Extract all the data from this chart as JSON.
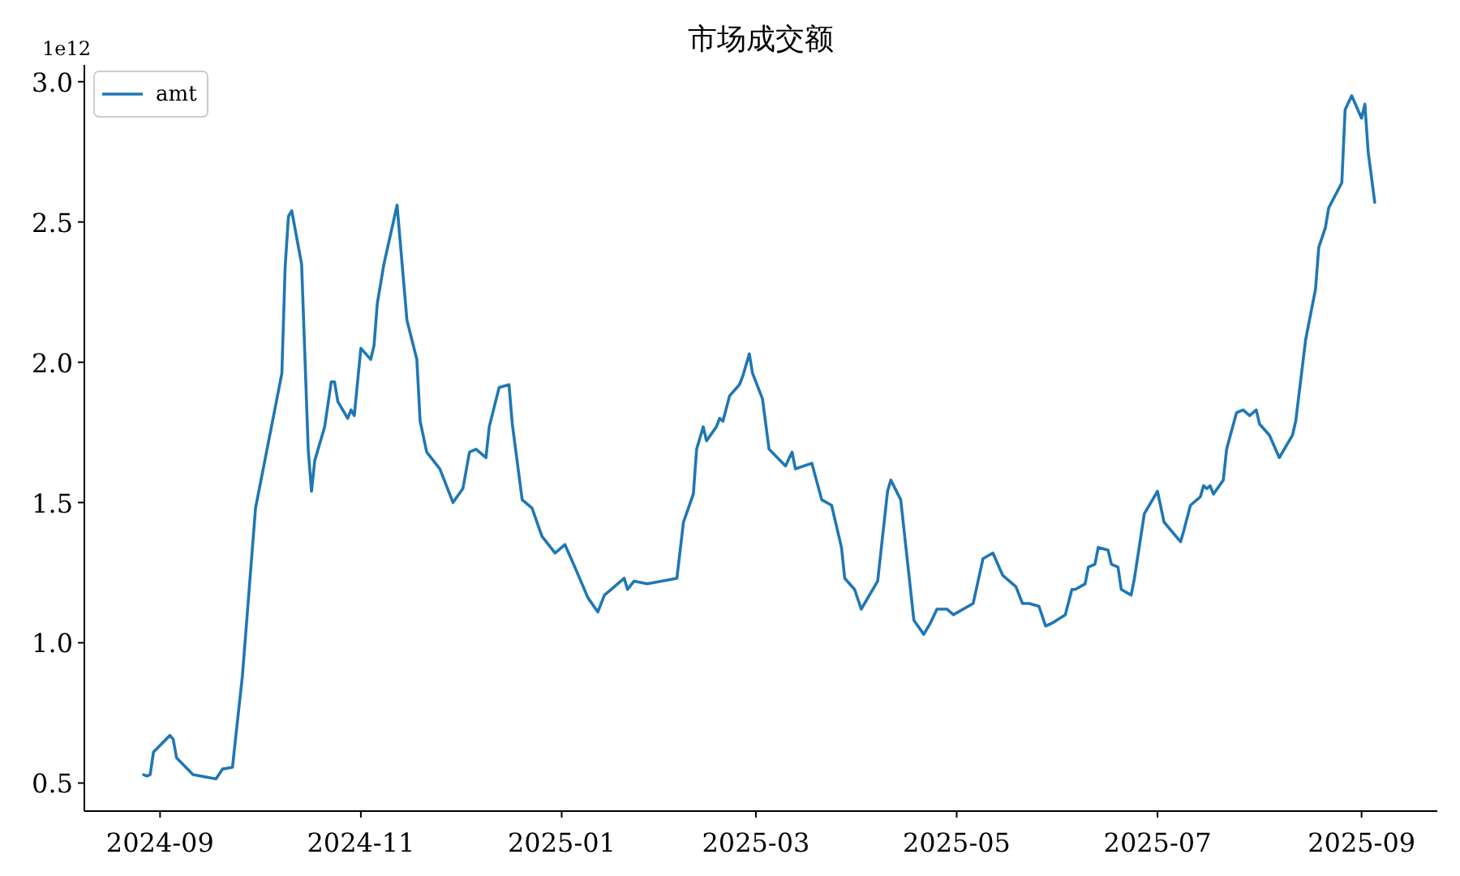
{
  "chart_data": {
    "type": "line",
    "title": "市场成交额",
    "annotations": [
      "1e12"
    ],
    "legend": "top left",
    "grid": false,
    "x": [
      "2024-08-27",
      "2024-08-28",
      "2024-08-29",
      "2024-08-30",
      "2024-09-04",
      "2024-09-05",
      "2024-09-06",
      "2024-09-11",
      "2024-09-18",
      "2024-09-20",
      "2024-09-23",
      "2024-09-24",
      "2024-09-26",
      "2024-09-30",
      "2024-10-08",
      "2024-10-09",
      "2024-10-10",
      "2024-10-11",
      "2024-10-14",
      "2024-10-16",
      "2024-10-17",
      "2024-10-18",
      "2024-10-21",
      "2024-10-23",
      "2024-10-24",
      "2024-10-25",
      "2024-10-28",
      "2024-10-29",
      "2024-10-30",
      "2024-11-01",
      "2024-11-04",
      "2024-11-05",
      "2024-11-06",
      "2024-11-08",
      "2024-11-12",
      "2024-11-15",
      "2024-11-18",
      "2024-11-19",
      "2024-11-21",
      "2024-11-25",
      "2024-11-29",
      "2024-12-02",
      "2024-12-04",
      "2024-12-06",
      "2024-12-09",
      "2024-12-10",
      "2024-12-13",
      "2024-12-16",
      "2024-12-17",
      "2024-12-20",
      "2024-12-23",
      "2024-12-26",
      "2024-12-30",
      "2025-01-02",
      "2025-01-05",
      "2025-01-09",
      "2025-01-12",
      "2025-01-14",
      "2025-01-16",
      "2025-01-20",
      "2025-01-21",
      "2025-01-23",
      "2025-01-27",
      "2025-02-05",
      "2025-02-07",
      "2025-02-10",
      "2025-02-11",
      "2025-02-13",
      "2025-02-14",
      "2025-02-17",
      "2025-02-18",
      "2025-02-19",
      "2025-02-21",
      "2025-02-24",
      "2025-02-25",
      "2025-02-27",
      "2025-02-28",
      "2025-03-03",
      "2025-03-05",
      "2025-03-10",
      "2025-03-12",
      "2025-03-13",
      "2025-03-18",
      "2025-03-21",
      "2025-03-24",
      "2025-03-27",
      "2025-03-28",
      "2025-03-31",
      "2025-04-02",
      "2025-04-07",
      "2025-04-10",
      "2025-04-11",
      "2025-04-14",
      "2025-04-18",
      "2025-04-21",
      "2025-04-23",
      "2025-04-25",
      "2025-04-28",
      "2025-04-30",
      "2025-05-06",
      "2025-05-09",
      "2025-05-12",
      "2025-05-15",
      "2025-05-19",
      "2025-05-21",
      "2025-05-23",
      "2025-05-26",
      "2025-05-28",
      "2025-05-30",
      "2025-06-03",
      "2025-06-05",
      "2025-06-06",
      "2025-06-09",
      "2025-06-10",
      "2025-06-12",
      "2025-06-13",
      "2025-06-16",
      "2025-06-17",
      "2025-06-19",
      "2025-06-20",
      "2025-06-23",
      "2025-06-24",
      "2025-06-27",
      "2025-07-01",
      "2025-07-03",
      "2025-07-08",
      "2025-07-09",
      "2025-07-11",
      "2025-07-14",
      "2025-07-15",
      "2025-07-16",
      "2025-07-17",
      "2025-07-18",
      "2025-07-21",
      "2025-07-22",
      "2025-07-25",
      "2025-07-27",
      "2025-07-29",
      "2025-07-31",
      "2025-08-01",
      "2025-08-04",
      "2025-08-07",
      "2025-08-11",
      "2025-08-12",
      "2025-08-15",
      "2025-08-18",
      "2025-08-19",
      "2025-08-21",
      "2025-08-22",
      "2025-08-26",
      "2025-08-27",
      "2025-08-29",
      "2025-09-01",
      "2025-09-02",
      "2025-09-03",
      "2025-09-05"
    ],
    "series": [
      {
        "name": "amt",
        "color": "#1f77b4",
        "values": [
          0.53,
          0.525,
          0.53,
          0.61,
          0.67,
          0.656,
          0.59,
          0.53,
          0.515,
          0.55,
          0.556,
          0.666,
          0.88,
          1.48,
          1.96,
          2.34,
          2.52,
          2.54,
          2.35,
          1.69,
          1.54,
          1.65,
          1.77,
          1.93,
          1.93,
          1.86,
          1.8,
          1.83,
          1.81,
          2.05,
          2.01,
          2.06,
          2.21,
          2.35,
          2.56,
          2.15,
          2.01,
          1.79,
          1.68,
          1.62,
          1.5,
          1.55,
          1.68,
          1.69,
          1.66,
          1.77,
          1.91,
          1.92,
          1.78,
          1.51,
          1.48,
          1.38,
          1.32,
          1.35,
          1.27,
          1.16,
          1.11,
          1.17,
          1.19,
          1.23,
          1.19,
          1.22,
          1.21,
          1.23,
          1.43,
          1.53,
          1.69,
          1.77,
          1.72,
          1.77,
          1.8,
          1.79,
          1.88,
          1.92,
          1.95,
          2.03,
          1.96,
          1.87,
          1.69,
          1.63,
          1.68,
          1.62,
          1.64,
          1.51,
          1.49,
          1.34,
          1.23,
          1.19,
          1.12,
          1.22,
          1.54,
          1.58,
          1.51,
          1.08,
          1.03,
          1.07,
          1.12,
          1.12,
          1.1,
          1.14,
          1.3,
          1.32,
          1.24,
          1.2,
          1.14,
          1.14,
          1.13,
          1.06,
          1.07,
          1.1,
          1.19,
          1.19,
          1.21,
          1.27,
          1.28,
          1.34,
          1.33,
          1.28,
          1.27,
          1.19,
          1.17,
          1.23,
          1.46,
          1.54,
          1.43,
          1.36,
          1.4,
          1.49,
          1.52,
          1.56,
          1.55,
          1.56,
          1.53,
          1.58,
          1.69,
          1.82,
          1.83,
          1.81,
          1.83,
          1.78,
          1.74,
          1.66,
          1.74,
          1.79,
          2.08,
          2.26,
          2.41,
          2.48,
          2.55,
          2.64,
          2.9,
          2.95,
          2.87,
          2.92,
          2.75,
          2.57
        ]
      }
    ],
    "xlim": [
      "2024-08-09",
      "2025-09-24"
    ],
    "xticks": [
      {
        "value": "2024-09",
        "label": "2024-09"
      },
      {
        "value": "2024-11",
        "label": "2024-11"
      },
      {
        "value": "2025-01",
        "label": "2025-01"
      },
      {
        "value": "2025-03",
        "label": "2025-03"
      },
      {
        "value": "2025-05",
        "label": "2025-05"
      },
      {
        "value": "2025-07",
        "label": "2025-07"
      },
      {
        "value": "2025-09",
        "label": "2025-09"
      }
    ],
    "ylim": [
      0.4,
      3.06
    ],
    "yticks": [
      {
        "value": 0.5,
        "label": "0.5"
      },
      {
        "value": 1,
        "label": "1.0"
      },
      {
        "value": 1.5,
        "label": "1.5"
      },
      {
        "value": 2,
        "label": "2.0"
      },
      {
        "value": 2.5,
        "label": "2.5"
      },
      {
        "value": 3,
        "label": "3.0"
      }
    ]
  }
}
